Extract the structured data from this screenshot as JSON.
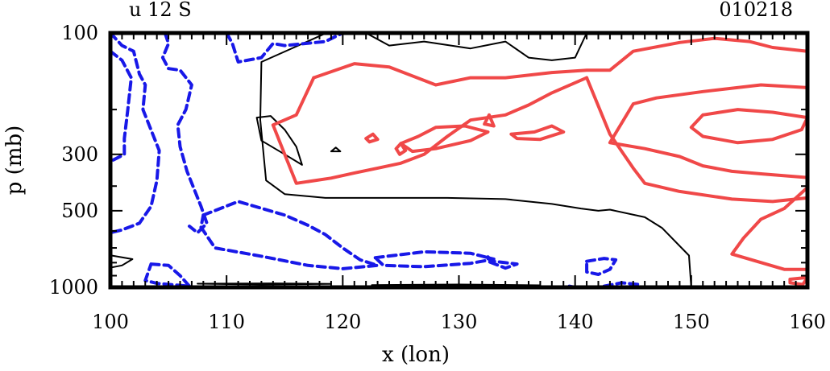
{
  "chart_data": {
    "type": "contour",
    "title_left": "u 12 S",
    "title_right": "010218",
    "xlabel": "x (lon)",
    "ylabel": "p (mb)",
    "x_ticks": [
      {
        "value": 100,
        "label": "100"
      },
      {
        "value": 110,
        "label": "110"
      },
      {
        "value": 120,
        "label": "120"
      },
      {
        "value": 130,
        "label": "130"
      },
      {
        "value": 140,
        "label": "140"
      },
      {
        "value": 150,
        "label": "150"
      },
      {
        "value": 160,
        "label": "160"
      }
    ],
    "y_ticks": [
      {
        "value": 100,
        "label": "100"
      },
      {
        "value": 300,
        "label": "300"
      },
      {
        "value": 500,
        "label": "500"
      },
      {
        "value": 1000,
        "label": "1000"
      }
    ],
    "xlim": [
      100,
      160
    ],
    "ylim": [
      1000,
      100
    ],
    "y_scale": "log",
    "colors": {
      "positive": "#f04848",
      "zero": "#000000",
      "negative": "#1818e8"
    },
    "contours": [
      {
        "level": "zero",
        "points": [
          [
            118.6,
            100
          ],
          [
            113.0,
            130
          ],
          [
            112.9,
            220
          ],
          [
            113.4,
            380
          ],
          [
            115.0,
            430
          ],
          [
            118.5,
            445
          ],
          [
            124.0,
            445
          ],
          [
            129.0,
            445
          ],
          [
            134.0,
            450
          ],
          [
            138.0,
            470
          ],
          [
            140.5,
            490
          ],
          [
            142.0,
            500
          ],
          [
            143.0,
            495
          ],
          [
            146.0,
            530
          ],
          [
            147.5,
            585
          ],
          [
            149.8,
            750
          ],
          [
            150.0,
            1000
          ]
        ]
      },
      {
        "level": "zero",
        "points": [
          [
            122.0,
            100
          ],
          [
            124.0,
            112
          ],
          [
            127.0,
            108
          ],
          [
            131.0,
            115
          ],
          [
            134.0,
            108
          ],
          [
            136.0,
            125
          ],
          [
            138.0,
            128
          ],
          [
            140.0,
            125
          ],
          [
            141.0,
            100
          ]
        ]
      },
      {
        "level": "zero",
        "points": [
          [
            112.6,
            215
          ],
          [
            113.0,
            265
          ],
          [
            115.0,
            300
          ],
          [
            116.5,
            330
          ],
          [
            116.0,
            280
          ],
          [
            115.0,
            240
          ],
          [
            113.8,
            212
          ],
          [
            112.6,
            215
          ]
        ]
      },
      {
        "level": "zero",
        "points": [
          [
            119.0,
            292
          ],
          [
            119.4,
            282
          ],
          [
            119.8,
            292
          ],
          [
            119.0,
            292
          ]
        ]
      },
      {
        "level": "zero",
        "points": [
          [
            107.5,
            968
          ],
          [
            114.0,
            965
          ],
          [
            119.0,
            970
          ],
          [
            113.0,
            975
          ],
          [
            107.5,
            968
          ]
        ]
      },
      {
        "level": "zero",
        "points": [
          [
            122.5,
            980
          ],
          [
            130.0,
            975
          ],
          [
            137.0,
            982
          ],
          [
            130.0,
            986
          ],
          [
            122.5,
            980
          ]
        ]
      },
      {
        "level": "zero",
        "points": [
          [
            100.1,
            750
          ],
          [
            101.9,
            775
          ],
          [
            101.0,
            820
          ],
          [
            100.1,
            835
          ]
        ]
      },
      {
        "level": "positive",
        "points": [
          [
            117.5,
            150
          ],
          [
            121.0,
            132
          ],
          [
            124.0,
            136
          ],
          [
            128.0,
            160
          ],
          [
            131.0,
            150
          ],
          [
            134.0,
            150
          ],
          [
            138.0,
            143
          ],
          [
            141.0,
            140
          ],
          [
            143.0,
            140
          ],
          [
            145.0,
            118
          ],
          [
            149.0,
            109
          ],
          [
            152.0,
            105
          ],
          [
            155.0,
            108
          ],
          [
            157.0,
            114
          ],
          [
            160.0,
            118
          ]
        ]
      },
      {
        "level": "positive",
        "points": [
          [
            160.0,
            164
          ],
          [
            156.0,
            160
          ],
          [
            151.0,
            170
          ],
          [
            147.0,
            180
          ],
          [
            145.0,
            190
          ],
          [
            143.0,
            270
          ],
          [
            146.0,
            285
          ],
          [
            149.0,
            306
          ],
          [
            151.0,
            333
          ],
          [
            153.5,
            350
          ],
          [
            156.0,
            358
          ],
          [
            160.0,
            370
          ]
        ]
      },
      {
        "level": "positive",
        "points": [
          [
            141.0,
            150
          ],
          [
            138.0,
            172
          ],
          [
            136.0,
            192
          ],
          [
            134.0,
            210
          ],
          [
            131.0,
            220
          ],
          [
            129.0,
            255
          ],
          [
            127.0,
            300
          ],
          [
            125.0,
            325
          ],
          [
            123.0,
            340
          ],
          [
            121.0,
            355
          ],
          [
            119.0,
            372
          ],
          [
            116.0,
            390
          ],
          [
            115.0,
            300
          ],
          [
            114.0,
            230
          ],
          [
            116.0,
            210
          ],
          [
            117.5,
            150
          ]
        ]
      },
      {
        "level": "positive",
        "points": [
          [
            141.0,
            150
          ],
          [
            143.0,
            250
          ],
          [
            145.0,
            340
          ],
          [
            146.0,
            390
          ],
          [
            149.0,
            420
          ],
          [
            153.5,
            450
          ],
          [
            157.0,
            460
          ],
          [
            160.0,
            445
          ]
        ]
      },
      {
        "level": "positive",
        "points": [
          [
            160.0,
            405
          ],
          [
            158.0,
            490
          ],
          [
            156.0,
            540
          ],
          [
            154.5,
            640
          ],
          [
            153.5,
            740
          ],
          [
            158.0,
            850
          ],
          [
            160.0,
            850
          ]
        ]
      },
      {
        "level": "positive",
        "points": [
          [
            151.0,
            210
          ],
          [
            154.0,
            200
          ],
          [
            157.0,
            205
          ],
          [
            160.0,
            215
          ],
          [
            159.5,
            240
          ],
          [
            157.0,
            262
          ],
          [
            154.0,
            270
          ],
          [
            151.0,
            255
          ],
          [
            150.0,
            235
          ],
          [
            151.0,
            210
          ]
        ]
      },
      {
        "level": "positive",
        "points": [
          [
            125.0,
            272
          ],
          [
            126.5,
            255
          ],
          [
            128.0,
            235
          ],
          [
            130.5,
            232
          ],
          [
            132.5,
            245
          ],
          [
            131.0,
            265
          ],
          [
            128.0,
            285
          ],
          [
            126.0,
            292
          ],
          [
            125.0,
            272
          ]
        ]
      },
      {
        "level": "positive",
        "points": [
          [
            134.5,
            250
          ],
          [
            136.5,
            245
          ],
          [
            138.0,
            232
          ],
          [
            139.0,
            245
          ],
          [
            137.0,
            262
          ],
          [
            135.0,
            260
          ],
          [
            134.5,
            250
          ]
        ]
      },
      {
        "level": "positive",
        "points": [
          [
            122.0,
            260
          ],
          [
            122.6,
            250
          ],
          [
            123.0,
            262
          ],
          [
            122.3,
            268
          ],
          [
            122.0,
            260
          ]
        ]
      },
      {
        "level": "positive",
        "points": [
          [
            124.6,
            285
          ],
          [
            125.0,
            272
          ],
          [
            125.4,
            290
          ],
          [
            124.9,
            300
          ],
          [
            124.6,
            285
          ]
        ]
      },
      {
        "level": "positive",
        "points": [
          [
            132.2,
            228
          ],
          [
            132.6,
            210
          ],
          [
            133.0,
            232
          ],
          [
            132.2,
            228
          ]
        ]
      },
      {
        "level": "positive",
        "points": [
          [
            158.5,
            930
          ],
          [
            160.0,
            915
          ],
          [
            159.6,
            975
          ],
          [
            158.5,
            960
          ],
          [
            158.5,
            930
          ]
        ]
      },
      {
        "level": "negative",
        "points": [
          [
            100.0,
            100
          ],
          [
            101.0,
            112
          ],
          [
            102.0,
            118
          ],
          [
            102.5,
            145
          ],
          [
            103.0,
            160
          ],
          [
            102.8,
            200
          ],
          [
            104.2,
            290
          ],
          [
            104.0,
            380
          ],
          [
            103.5,
            480
          ],
          [
            102.5,
            560
          ],
          [
            101.0,
            595
          ],
          [
            100.0,
            610
          ]
        ]
      },
      {
        "level": "negative",
        "points": [
          [
            100.0,
            118
          ],
          [
            101.0,
            128
          ],
          [
            101.8,
            150
          ],
          [
            101.5,
            200
          ],
          [
            101.2,
            260
          ],
          [
            101.2,
            300
          ],
          [
            100.0,
            320
          ]
        ]
      },
      {
        "level": "negative",
        "points": [
          [
            104.7,
            100
          ],
          [
            105.0,
            110
          ],
          [
            104.5,
            125
          ],
          [
            105.0,
            138
          ],
          [
            106.0,
            140
          ],
          [
            107.0,
            160
          ],
          [
            106.5,
            200
          ],
          [
            105.8,
            230
          ],
          [
            106.0,
            280
          ],
          [
            106.6,
            350
          ],
          [
            107.8,
            480
          ],
          [
            108.3,
            560
          ],
          [
            107.5,
            610
          ],
          [
            106.8,
            575
          ]
        ]
      },
      {
        "level": "negative",
        "points": [
          [
            110.0,
            100
          ],
          [
            110.5,
            110
          ],
          [
            111.0,
            130
          ],
          [
            113.0,
            125
          ],
          [
            114.0,
            110
          ],
          [
            115.0,
            112
          ],
          [
            118.5,
            108
          ],
          [
            120.0,
            100
          ]
        ]
      },
      {
        "level": "negative",
        "points": [
          [
            103.5,
            810
          ],
          [
            105.0,
            820
          ],
          [
            106.0,
            900
          ],
          [
            106.8,
            990
          ],
          [
            104.0,
            965
          ],
          [
            103.0,
            940
          ],
          [
            103.5,
            810
          ]
        ]
      },
      {
        "level": "negative",
        "points": [
          [
            108.0,
            520
          ],
          [
            111.0,
            460
          ],
          [
            115.0,
            520
          ],
          [
            117.0,
            570
          ],
          [
            118.5,
            620
          ],
          [
            120.0,
            700
          ],
          [
            121.5,
            780
          ],
          [
            123.0,
            820
          ],
          [
            120.0,
            845
          ],
          [
            117.0,
            820
          ],
          [
            113.0,
            755
          ],
          [
            109.0,
            700
          ],
          [
            107.8,
            580
          ],
          [
            108.0,
            520
          ]
        ]
      },
      {
        "level": "negative",
        "points": [
          [
            122.8,
            765
          ],
          [
            127.0,
            725
          ],
          [
            131.0,
            735
          ],
          [
            133.0,
            775
          ],
          [
            131.0,
            805
          ],
          [
            127.0,
            830
          ],
          [
            123.5,
            820
          ],
          [
            122.8,
            765
          ]
        ]
      },
      {
        "level": "negative",
        "points": [
          [
            132.5,
            760
          ],
          [
            133.0,
            790
          ],
          [
            134.0,
            800
          ],
          [
            135.0,
            810
          ],
          [
            134.0,
            840
          ],
          [
            132.5,
            790
          ],
          [
            132.5,
            760
          ]
        ]
      },
      {
        "level": "negative",
        "points": [
          [
            141.0,
            790
          ],
          [
            142.5,
            770
          ],
          [
            143.5,
            780
          ],
          [
            143.0,
            850
          ],
          [
            142.0,
            890
          ],
          [
            141.0,
            870
          ],
          [
            141.0,
            790
          ]
        ]
      },
      {
        "level": "negative",
        "points": [
          [
            142.5,
            990
          ],
          [
            144.0,
            960
          ],
          [
            145.5,
            975
          ],
          [
            144.5,
            1000
          ]
        ]
      },
      {
        "level": "negative",
        "points": [
          [
            139.5,
            990
          ],
          [
            140.0,
            1000
          ]
        ]
      }
    ]
  }
}
